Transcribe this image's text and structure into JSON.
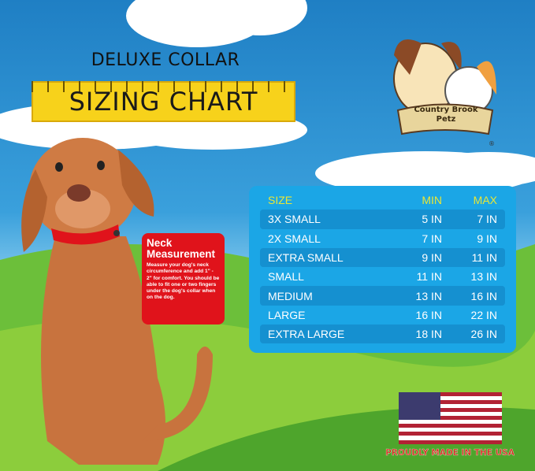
{
  "header": {
    "line1": "DELUXE COLLAR",
    "line2": "SIZING CHART"
  },
  "logo": {
    "text": "Country Brook Petz",
    "mark": "®"
  },
  "table": {
    "headers": [
      "SIZE",
      "MIN",
      "MAX"
    ],
    "rows": [
      [
        "3X SMALL",
        "5 IN",
        "7 IN"
      ],
      [
        "2X SMALL",
        "7 IN",
        "9 IN"
      ],
      [
        "EXTRA SMALL",
        "9 IN",
        "11 IN"
      ],
      [
        "SMALL",
        "11 IN",
        "13 IN"
      ],
      [
        "MEDIUM",
        "13 IN",
        "16 IN"
      ],
      [
        "LARGE",
        "16 IN",
        "22 IN"
      ],
      [
        "EXTRA LARGE",
        "18 IN",
        "26 IN"
      ]
    ]
  },
  "callout": {
    "title": "Neck Measurement",
    "body": "Measure your dog's neck circumference and add 1\" - 2\" for comfort. You should be able to fit one or two fingers under the dog's collar when on the dog."
  },
  "footer": {
    "made_in": "PROUDLY MADE IN THE USA"
  },
  "colors": {
    "table_bg": "#1ba6e6",
    "header_text": "#e8e637",
    "ruler": "#f7d21b",
    "callout": "#e0131b",
    "collar": "#e0131b"
  }
}
